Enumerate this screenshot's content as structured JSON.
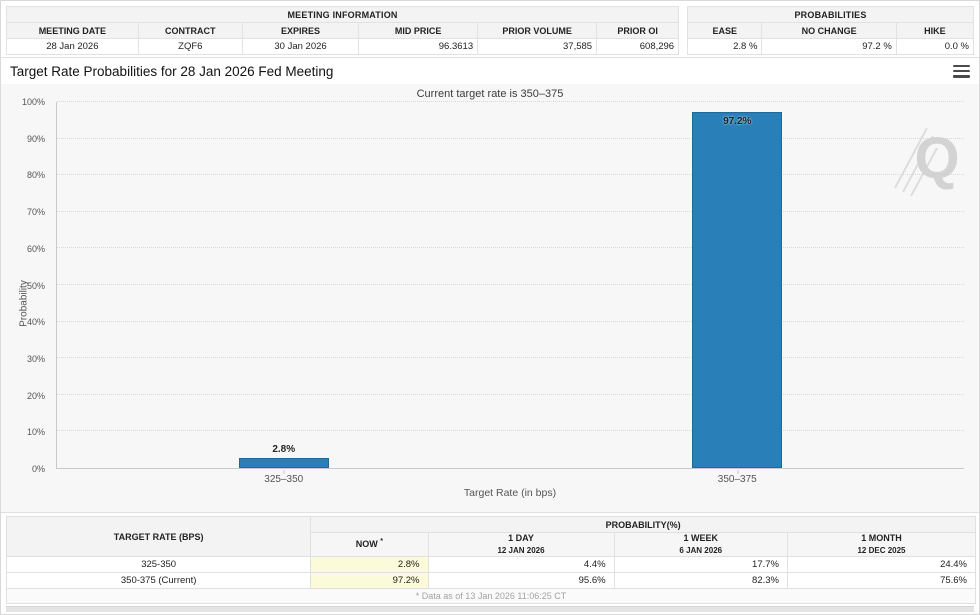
{
  "meeting_info": {
    "title": "MEETING INFORMATION",
    "columns": [
      "MEETING DATE",
      "CONTRACT",
      "EXPIRES",
      "MID PRICE",
      "PRIOR VOLUME",
      "PRIOR OI"
    ],
    "values": [
      "28 Jan 2026",
      "ZQF6",
      "30 Jan 2026",
      "96.3613",
      "37,585",
      "608,296"
    ]
  },
  "probabilities_box": {
    "title": "PROBABILITIES",
    "columns": [
      "EASE",
      "NO CHANGE",
      "HIKE"
    ],
    "values": [
      "2.8 %",
      "97.2 %",
      "0.0 %"
    ]
  },
  "chart": {
    "title": "Target Rate Probabilities for 28 Jan 2026 Fed Meeting",
    "subtitle": "Current target rate is 350–375",
    "menu_icon": "hamburger-icon",
    "watermark_letter": "Q"
  },
  "chart_data": {
    "type": "bar",
    "title": "Target Rate Probabilities for 28 Jan 2026 Fed Meeting",
    "subtitle": "Current target rate is 350–375",
    "categories": [
      "325–350",
      "350–375"
    ],
    "values": [
      2.8,
      97.2
    ],
    "value_labels": [
      "2.8%",
      "97.2%"
    ],
    "xlabel": "Target Rate (in bps)",
    "ylabel": "Probability",
    "ylim": [
      0,
      100
    ],
    "ytick_step": 10,
    "ytick_suffix": "%",
    "bar_color": "#2980b9",
    "grid": "horizontal-dotted",
    "legend": "none"
  },
  "bottom_table": {
    "col1_header": "TARGET RATE (BPS)",
    "group_header": "PROBABILITY(%)",
    "sub_headers": {
      "now": "NOW",
      "now_sup": "*",
      "day": "1 DAY",
      "day_date": "12 JAN 2026",
      "week": "1 WEEK",
      "week_date": "6 JAN 2026",
      "month": "1 MONTH",
      "month_date": "12 DEC 2025"
    },
    "rows": [
      {
        "label": "325-350",
        "now": "2.8%",
        "one_day": "4.4%",
        "one_week": "17.7%",
        "one_month": "24.4%"
      },
      {
        "label": "350-375 (Current)",
        "now": "97.2%",
        "one_day": "95.6%",
        "one_week": "82.3%",
        "one_month": "75.6%"
      }
    ],
    "footnote": "* Data as of 13 Jan 2026 11:06:25 CT"
  },
  "colors": {
    "bar_blue": "#2980b9",
    "header_gray": "#f3f3f3",
    "now_highlight": "#fbfbd9",
    "chart_bg": "#f7f7f7",
    "watermark_gray": "#cdcdcd"
  }
}
